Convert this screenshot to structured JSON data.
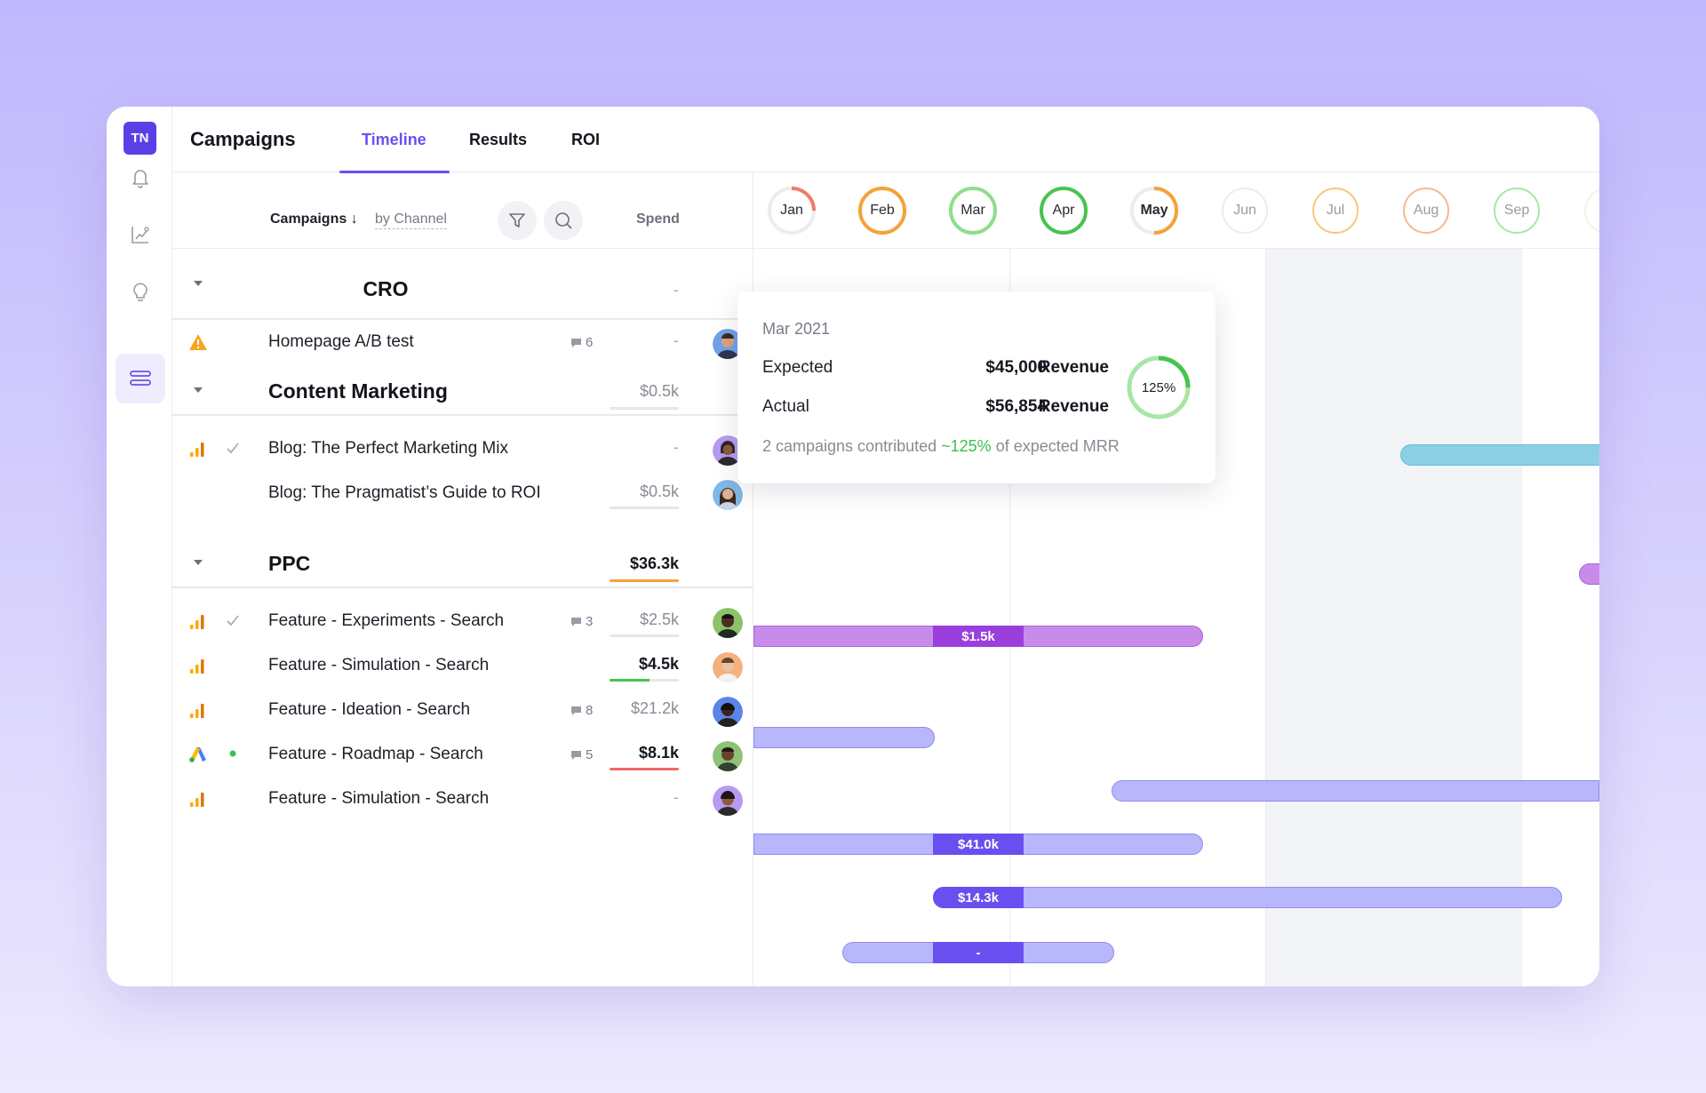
{
  "app": {
    "logo": "TN",
    "title": "Campaigns",
    "tabs": [
      "Timeline",
      "Results",
      "ROI"
    ],
    "active_tab": "Timeline",
    "accent": "#6a4ff0"
  },
  "rail": [
    "bell-icon",
    "chart-icon",
    "lightbulb-icon",
    "timeline-icon"
  ],
  "panel": {
    "sort_label": "Campaigns ↓",
    "group_by": "by Channel",
    "spend_header": "Spend"
  },
  "groups": [
    {
      "title": "CRO",
      "spend": "-",
      "items": [
        {
          "name": "Homepage A/B test",
          "icon": "warning-icon",
          "status": "",
          "comments": "6",
          "spend": "-"
        }
      ]
    },
    {
      "title": "Content Marketing",
      "spend": "$0.5k",
      "items": [
        {
          "name": "Blog: The Perfect Marketing Mix",
          "icon": "analytics-icon",
          "status": "check",
          "comments": "",
          "spend": "-"
        },
        {
          "name": "Blog: The Pragmatist’s Guide to ROI",
          "icon": "",
          "status": "",
          "comments": "",
          "spend": "$0.5k"
        }
      ]
    },
    {
      "title": "PPC",
      "spend": "$36.3k",
      "items": [
        {
          "name": "Feature - Experiments - Search",
          "icon": "analytics-icon",
          "status": "check",
          "comments": "3",
          "spend": "$2.5k"
        },
        {
          "name": "Feature - Simulation - Search",
          "icon": "analytics-icon",
          "status": "",
          "comments": "",
          "spend": "$4.5k"
        },
        {
          "name": "Feature - Ideation - Search",
          "icon": "analytics-icon",
          "status": "",
          "comments": "8",
          "spend": "$21.2k"
        },
        {
          "name": "Feature - Roadmap - Search",
          "icon": "google-ads-icon",
          "status": "dot",
          "comments": "5",
          "spend": "$8.1k"
        },
        {
          "name": "Feature - Simulation - Search",
          "icon": "analytics-icon",
          "status": "",
          "comments": "",
          "spend": "-"
        }
      ]
    }
  ],
  "months": [
    {
      "label": "Jan",
      "progress": 0.25,
      "color": "#f27a6b"
    },
    {
      "label": "Feb",
      "progress": 1.0,
      "color": "#f5a23a"
    },
    {
      "label": "Mar",
      "progress": 1.0,
      "color": "#8ede8a"
    },
    {
      "label": "Apr",
      "progress": 1.0,
      "color": "#46c44e"
    },
    {
      "label": "May",
      "progress": 0.5,
      "color": "#f5a23a"
    },
    {
      "label": "Jun",
      "progress": 0,
      "color": "#d6d6de"
    },
    {
      "label": "Jul",
      "progress": 1.0,
      "color": "#f7c77e"
    },
    {
      "label": "Aug",
      "progress": 1.0,
      "color": "#f7b795"
    },
    {
      "label": "Sep",
      "progress": 1.0,
      "color": "#a9e6a6"
    }
  ],
  "bar_labels": {
    "blog_roi": "$1.5k",
    "ideation": "$41.0k",
    "roadmap": "$14.3k",
    "simulation2": "-"
  },
  "tooltip": {
    "date": "Mar 2021",
    "expected_label": "Expected",
    "expected_value": "$45,000",
    "actual_label": "Actual",
    "actual_value": "$56,854",
    "revenue_word": "Revenue",
    "percent": "125%",
    "percent_fraction": 1.25,
    "foot_prefix": "2 campaigns contributed",
    "foot_highlight": "~125%",
    "foot_suffix": "of expected MRR"
  }
}
